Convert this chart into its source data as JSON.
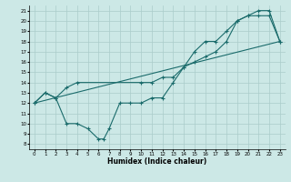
{
  "xlabel": "Humidex (Indice chaleur)",
  "ylabel": "",
  "bg_color": "#cce8e6",
  "grid_color": "#aaccca",
  "line_color": "#1a6b6b",
  "xlim": [
    -0.5,
    23.5
  ],
  "ylim": [
    7.5,
    21.5
  ],
  "xticks": [
    0,
    1,
    2,
    3,
    4,
    5,
    6,
    7,
    8,
    9,
    10,
    11,
    12,
    13,
    14,
    15,
    16,
    17,
    18,
    19,
    20,
    21,
    22,
    23
  ],
  "yticks": [
    8,
    9,
    10,
    11,
    12,
    13,
    14,
    15,
    16,
    17,
    18,
    19,
    20,
    21
  ],
  "line1_x": [
    0,
    1,
    2,
    3,
    4,
    5,
    6,
    6.5,
    7,
    8,
    9,
    10,
    11,
    12,
    13,
    14,
    15,
    16,
    17,
    18,
    19,
    20,
    21,
    22,
    23
  ],
  "line1_y": [
    12,
    13,
    12.5,
    10,
    10,
    9.5,
    8.5,
    8.5,
    9.5,
    12,
    12,
    12,
    12.5,
    12.5,
    14,
    15.5,
    16,
    16.5,
    17,
    18,
    20,
    20.5,
    20.5,
    20.5,
    18
  ],
  "line2_x": [
    0,
    1,
    2,
    3,
    4,
    10,
    11,
    12,
    13,
    14,
    15,
    16,
    17,
    18,
    19,
    20,
    21,
    22,
    23
  ],
  "line2_y": [
    12,
    13,
    12.5,
    13.5,
    14,
    14,
    14,
    14.5,
    14.5,
    15.5,
    17,
    18,
    18,
    19,
    20,
    20.5,
    21,
    21,
    18
  ],
  "line3_x": [
    0,
    23
  ],
  "line3_y": [
    12,
    18
  ],
  "marker_style": "+",
  "marker_size": 3,
  "linewidth": 0.8
}
